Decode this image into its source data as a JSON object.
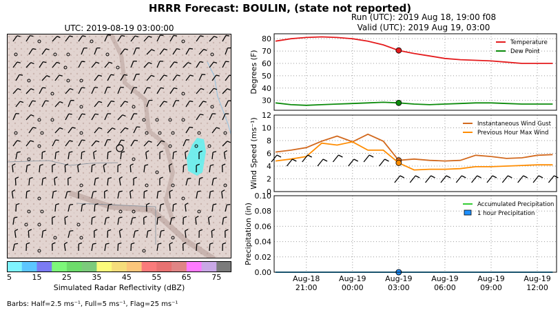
{
  "header": {
    "suptitle": "HRRR Forecast: BOULIN, (state not reported)",
    "run_line": "Run (UTC): 2019 Aug 18, 19:00 f08",
    "valid_line": "Valid (UTC): 2019 Aug 19, 03:00"
  },
  "map": {
    "title": "UTC: 2019-08-19 03:00:00",
    "colorbar_label": "Simulated Radar Reflectivity (dBZ)",
    "colorbar_ticks": [
      "5",
      "15",
      "25",
      "35",
      "45",
      "55",
      "65",
      "75"
    ],
    "colorbar_colors": [
      "#7ff4ff",
      "#5cc6ff",
      "#7b7bf3",
      "#7df77a",
      "#6ddb6b",
      "#7ccb7c",
      "#fbfb7b",
      "#f5dd7b",
      "#fbc67b",
      "#fa7b7b",
      "#e87171",
      "#e08585",
      "#ff7bff",
      "#c9a8e6",
      "#7b7b7b"
    ],
    "barbs_note": "Barbs: Half=2.5 ms⁻¹, Full=5 ms⁻¹, Flag=25 ms⁻¹"
  },
  "chart_data": [
    {
      "type": "line",
      "ylabel": "Degrees (F)",
      "ylim": [
        22,
        84
      ],
      "yticks": [
        "30",
        "40",
        "50",
        "60",
        "70",
        "80"
      ],
      "x": [
        "Aug-18 19:00",
        "20:00",
        "21:00",
        "22:00",
        "23:00",
        "Aug-19 00:00",
        "01:00",
        "02:00",
        "03:00",
        "04:00",
        "05:00",
        "06:00",
        "07:00",
        "08:00",
        "09:00",
        "10:00",
        "11:00",
        "12:00",
        "13:00"
      ],
      "series": [
        {
          "name": "Temperature",
          "color": "#e41a1c",
          "values": [
            78,
            80,
            81,
            81.5,
            81,
            80,
            78,
            75,
            70.5,
            68,
            66,
            64,
            63,
            62.5,
            62,
            61,
            60,
            60,
            60
          ]
        },
        {
          "name": "Dew Point",
          "color": "#0a8a0a",
          "values": [
            28,
            26.5,
            26,
            26.5,
            27,
            27.5,
            28,
            28.5,
            28,
            27,
            26.5,
            27,
            27.5,
            28,
            28,
            27.5,
            27,
            27,
            27
          ]
        }
      ],
      "marker_index": 8,
      "legend": "top-right"
    },
    {
      "type": "line",
      "ylabel": "Wind Speed (ms⁻¹)",
      "ylim": [
        0,
        12
      ],
      "yticks": [
        "0",
        "2",
        "4",
        "6",
        "8",
        "10",
        "12"
      ],
      "x": [
        "Aug-18 19:00",
        "20:00",
        "21:00",
        "22:00",
        "23:00",
        "Aug-19 00:00",
        "01:00",
        "02:00",
        "03:00",
        "04:00",
        "05:00",
        "06:00",
        "07:00",
        "08:00",
        "09:00",
        "10:00",
        "11:00",
        "12:00",
        "13:00"
      ],
      "series": [
        {
          "name": "Instantaneous Wind Gust",
          "color": "#d2691e",
          "values": [
            6.2,
            6.5,
            6.9,
            7.9,
            8.7,
            7.8,
            9.0,
            7.9,
            4.9,
            5.1,
            4.9,
            4.8,
            4.9,
            5.7,
            5.5,
            5.2,
            5.3,
            5.7,
            5.8
          ]
        },
        {
          "name": "Previous Hour Max Wind",
          "color": "#ff8c00",
          "values": [
            4.8,
            5.1,
            5.5,
            7.6,
            7.3,
            7.8,
            6.5,
            6.5,
            4.5,
            3.4,
            3.5,
            3.5,
            3.6,
            3.9,
            3.9,
            4.0,
            4.1,
            4.2,
            4.2
          ]
        }
      ],
      "marker_index": 8,
      "legend": "top-right"
    },
    {
      "type": "bar",
      "ylabel": "Precipitation (in)",
      "ylim": [
        0,
        0.1
      ],
      "yticks": [
        "0.00",
        "0.02",
        "0.04",
        "0.06",
        "0.08",
        "0.10"
      ],
      "x": [
        "Aug-18 19:00",
        "20:00",
        "21:00",
        "22:00",
        "23:00",
        "Aug-19 00:00",
        "01:00",
        "02:00",
        "03:00",
        "04:00",
        "05:00",
        "06:00",
        "07:00",
        "08:00",
        "09:00",
        "10:00",
        "11:00",
        "12:00",
        "13:00"
      ],
      "series": [
        {
          "name": "Accumulated Precipitation",
          "color": "#32cd32",
          "values": [
            0,
            0,
            0,
            0,
            0,
            0,
            0,
            0,
            0,
            0,
            0,
            0,
            0,
            0,
            0,
            0,
            0,
            0,
            0
          ]
        },
        {
          "name": "1 hour Precipitation",
          "color": "#1e90ff",
          "values": [
            0,
            0,
            0,
            0,
            0,
            0,
            0,
            0,
            0,
            0,
            0,
            0,
            0,
            0,
            0,
            0,
            0,
            0,
            0
          ]
        }
      ],
      "marker_index": 8,
      "legend": "top-right"
    }
  ],
  "time_axis": {
    "ticks": [
      {
        "line1": "Aug-18",
        "line2": "21:00"
      },
      {
        "line1": "Aug-19",
        "line2": "00:00"
      },
      {
        "line1": "Aug-19",
        "line2": "03:00"
      },
      {
        "line1": "Aug-19",
        "line2": "06:00"
      },
      {
        "line1": "Aug-19",
        "line2": "09:00"
      },
      {
        "line1": "Aug-19",
        "line2": "12:00"
      }
    ]
  }
}
